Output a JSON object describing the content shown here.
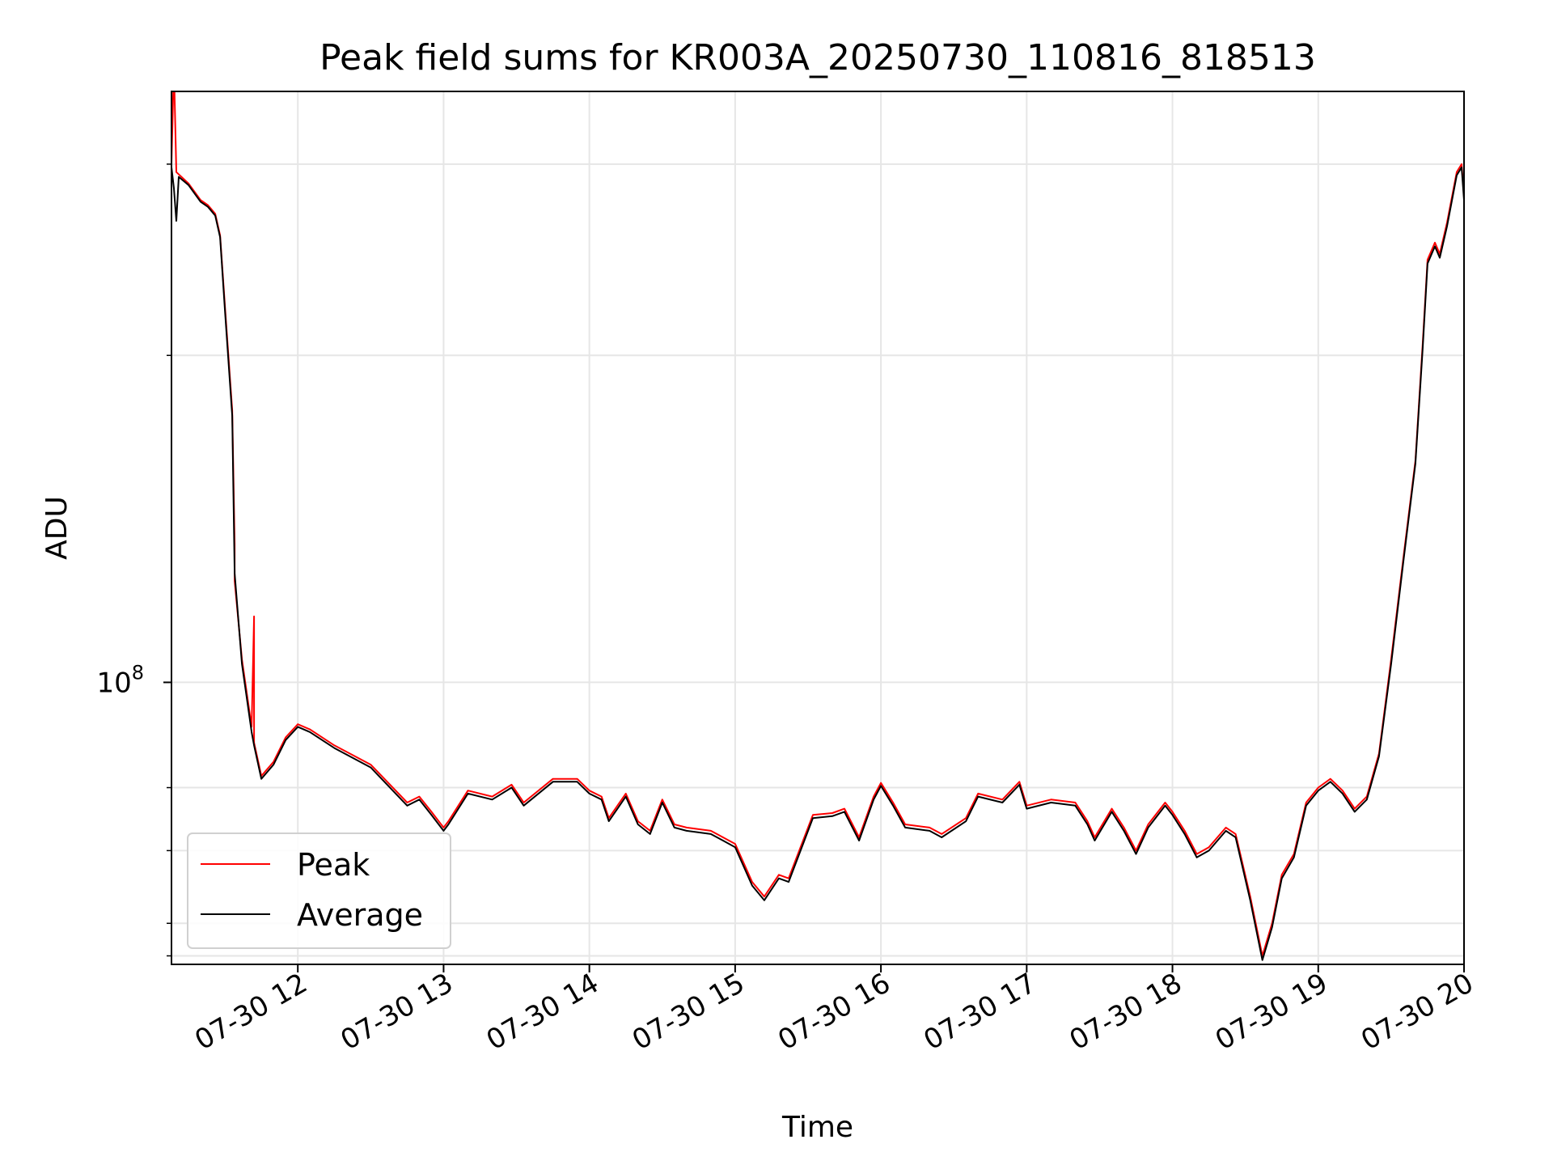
{
  "chart_data": {
    "type": "line",
    "title": "Peak field sums for KR003A_20250730_110816_818513",
    "xlabel": "Time",
    "ylabel": "ADU",
    "y_scale": "log",
    "ylim": [
      55000000,
      350000000
    ],
    "xlim": [
      "2025-07-30 11:08",
      "2025-07-30 20:00"
    ],
    "x_ticks": [
      {
        "value": "2025-07-30 12:00",
        "label": "07-30 12"
      },
      {
        "value": "2025-07-30 13:00",
        "label": "07-30 13"
      },
      {
        "value": "2025-07-30 14:00",
        "label": "07-30 14"
      },
      {
        "value": "2025-07-30 15:00",
        "label": "07-30 15"
      },
      {
        "value": "2025-07-30 16:00",
        "label": "07-30 16"
      },
      {
        "value": "2025-07-30 17:00",
        "label": "07-30 17"
      },
      {
        "value": "2025-07-30 18:00",
        "label": "07-30 18"
      },
      {
        "value": "2025-07-30 19:00",
        "label": "07-30 19"
      },
      {
        "value": "2025-07-30 20:00",
        "label": "07-30 20"
      }
    ],
    "y_major_ticks": [
      {
        "value": 100000000,
        "base": "10",
        "exp": "8"
      }
    ],
    "y_minor_ticks": [
      56000000,
      60000000,
      70000000,
      80000000,
      200000000,
      300000000
    ],
    "grid": true,
    "legend_position": "lower-left",
    "series": [
      {
        "name": "Peak",
        "color": "#ff0000",
        "points": [
          [
            "2025-07-30 11:08",
            300000000
          ],
          [
            "2025-07-30 11:09",
            370000000
          ],
          [
            "2025-07-30 11:10",
            295000000
          ],
          [
            "2025-07-30 11:15",
            288000000
          ],
          [
            "2025-07-30 11:20",
            278000000
          ],
          [
            "2025-07-30 11:23",
            275000000
          ],
          [
            "2025-07-30 11:26",
            270000000
          ],
          [
            "2025-07-30 11:28",
            258000000
          ],
          [
            "2025-07-30 11:30",
            222000000
          ],
          [
            "2025-07-30 11:33",
            178000000
          ],
          [
            "2025-07-30 11:34",
            134000000
          ],
          [
            "2025-07-30 11:34",
            124000000
          ],
          [
            "2025-07-30 11:37",
            105000000
          ],
          [
            "2025-07-30 11:41",
            91000000
          ],
          [
            "2025-07-30 11:42",
            115000000
          ],
          [
            "2025-07-30 11:42",
            88000000
          ],
          [
            "2025-07-30 11:45",
            82000000
          ],
          [
            "2025-07-30 11:50",
            84500000
          ],
          [
            "2025-07-30 11:55",
            89000000
          ],
          [
            "2025-07-30 12:00",
            91500000
          ],
          [
            "2025-07-30 12:05",
            90500000
          ],
          [
            "2025-07-30 12:15",
            87500000
          ],
          [
            "2025-07-30 12:30",
            84000000
          ],
          [
            "2025-07-30 12:45",
            77500000
          ],
          [
            "2025-07-30 12:50",
            78500000
          ],
          [
            "2025-07-30 12:55",
            76000000
          ],
          [
            "2025-07-30 13:00",
            73500000
          ],
          [
            "2025-07-30 13:02",
            74500000
          ],
          [
            "2025-07-30 13:10",
            79500000
          ],
          [
            "2025-07-30 13:20",
            78500000
          ],
          [
            "2025-07-30 13:28",
            80500000
          ],
          [
            "2025-07-30 13:33",
            77500000
          ],
          [
            "2025-07-30 13:45",
            81500000
          ],
          [
            "2025-07-30 13:55",
            81500000
          ],
          [
            "2025-07-30 14:00",
            79500000
          ],
          [
            "2025-07-30 14:05",
            78500000
          ],
          [
            "2025-07-30 14:08",
            75000000
          ],
          [
            "2025-07-30 14:15",
            79000000
          ],
          [
            "2025-07-30 14:20",
            74500000
          ],
          [
            "2025-07-30 14:25",
            73000000
          ],
          [
            "2025-07-30 14:30",
            78000000
          ],
          [
            "2025-07-30 14:35",
            74000000
          ],
          [
            "2025-07-30 14:40",
            73500000
          ],
          [
            "2025-07-30 14:50",
            73000000
          ],
          [
            "2025-07-30 14:55",
            72000000
          ],
          [
            "2025-07-30 15:00",
            71000000
          ],
          [
            "2025-07-30 15:07",
            65500000
          ],
          [
            "2025-07-30 15:12",
            63500000
          ],
          [
            "2025-07-30 15:18",
            66500000
          ],
          [
            "2025-07-30 15:22",
            66000000
          ],
          [
            "2025-07-30 15:32",
            75500000
          ],
          [
            "2025-07-30 15:40",
            75800000
          ],
          [
            "2025-07-30 15:45",
            76500000
          ],
          [
            "2025-07-30 15:51",
            72000000
          ],
          [
            "2025-07-30 15:57",
            78500000
          ],
          [
            "2025-07-30 16:00",
            80800000
          ],
          [
            "2025-07-30 16:05",
            77500000
          ],
          [
            "2025-07-30 16:10",
            74000000
          ],
          [
            "2025-07-30 16:20",
            73500000
          ],
          [
            "2025-07-30 16:25",
            72500000
          ],
          [
            "2025-07-30 16:35",
            75000000
          ],
          [
            "2025-07-30 16:40",
            79000000
          ],
          [
            "2025-07-30 16:50",
            78000000
          ],
          [
            "2025-07-30 16:57",
            81000000
          ],
          [
            "2025-07-30 17:00",
            77000000
          ],
          [
            "2025-07-30 17:10",
            78000000
          ],
          [
            "2025-07-30 17:20",
            77500000
          ],
          [
            "2025-07-30 17:25",
            74500000
          ],
          [
            "2025-07-30 17:28",
            72000000
          ],
          [
            "2025-07-30 17:35",
            76500000
          ],
          [
            "2025-07-30 17:40",
            73500000
          ],
          [
            "2025-07-30 17:45",
            70000000
          ],
          [
            "2025-07-30 17:50",
            74000000
          ],
          [
            "2025-07-30 17:57",
            77500000
          ],
          [
            "2025-07-30 18:00",
            76000000
          ],
          [
            "2025-07-30 18:05",
            73000000
          ],
          [
            "2025-07-30 18:10",
            69500000
          ],
          [
            "2025-07-30 18:15",
            70500000
          ],
          [
            "2025-07-30 18:22",
            73500000
          ],
          [
            "2025-07-30 18:26",
            72500000
          ],
          [
            "2025-07-30 18:32",
            63500000
          ],
          [
            "2025-07-30 18:37",
            56000000
          ],
          [
            "2025-07-30 18:41",
            60000000
          ],
          [
            "2025-07-30 18:45",
            66500000
          ],
          [
            "2025-07-30 18:50",
            69500000
          ],
          [
            "2025-07-30 18:55",
            77500000
          ],
          [
            "2025-07-30 19:00",
            80000000
          ],
          [
            "2025-07-30 19:05",
            81500000
          ],
          [
            "2025-07-30 19:10",
            79500000
          ],
          [
            "2025-07-30 19:15",
            76500000
          ],
          [
            "2025-07-30 19:20",
            78500000
          ],
          [
            "2025-07-30 19:25",
            86000000
          ],
          [
            "2025-07-30 19:30",
            105000000
          ],
          [
            "2025-07-30 19:35",
            130000000
          ],
          [
            "2025-07-30 19:40",
            160000000
          ],
          [
            "2025-07-30 19:43",
            205000000
          ],
          [
            "2025-07-30 19:45",
            245000000
          ],
          [
            "2025-07-30 19:48",
            254000000
          ],
          [
            "2025-07-30 19:50",
            248000000
          ],
          [
            "2025-07-30 19:53",
            265000000
          ],
          [
            "2025-07-30 19:57",
            295000000
          ],
          [
            "2025-07-30 19:59",
            300000000
          ],
          [
            "2025-07-30 20:00",
            280000000
          ]
        ]
      },
      {
        "name": "Average",
        "color": "#000000",
        "points": [
          [
            "2025-07-30 11:08",
            298000000
          ],
          [
            "2025-07-30 11:09",
            285000000
          ],
          [
            "2025-07-30 11:10",
            266000000
          ],
          [
            "2025-07-30 11:11",
            292000000
          ],
          [
            "2025-07-30 11:15",
            287000000
          ],
          [
            "2025-07-30 11:20",
            277000000
          ],
          [
            "2025-07-30 11:23",
            274000000
          ],
          [
            "2025-07-30 11:26",
            269000000
          ],
          [
            "2025-07-30 11:28",
            257000000
          ],
          [
            "2025-07-30 11:30",
            220000000
          ],
          [
            "2025-07-30 11:33",
            176000000
          ],
          [
            "2025-07-30 11:34",
            126000000
          ],
          [
            "2025-07-30 11:37",
            104000000
          ],
          [
            "2025-07-30 11:41",
            90000000
          ],
          [
            "2025-07-30 11:42",
            87500000
          ],
          [
            "2025-07-30 11:45",
            81500000
          ],
          [
            "2025-07-30 11:50",
            84000000
          ],
          [
            "2025-07-30 11:55",
            88500000
          ],
          [
            "2025-07-30 12:00",
            91000000
          ],
          [
            "2025-07-30 12:05",
            90000000
          ],
          [
            "2025-07-30 12:15",
            87000000
          ],
          [
            "2025-07-30 12:30",
            83500000
          ],
          [
            "2025-07-30 12:45",
            77000000
          ],
          [
            "2025-07-30 12:50",
            78000000
          ],
          [
            "2025-07-30 12:55",
            75500000
          ],
          [
            "2025-07-30 13:00",
            73000000
          ],
          [
            "2025-07-30 13:02",
            74000000
          ],
          [
            "2025-07-30 13:10",
            79000000
          ],
          [
            "2025-07-30 13:20",
            78000000
          ],
          [
            "2025-07-30 13:28",
            80000000
          ],
          [
            "2025-07-30 13:33",
            77000000
          ],
          [
            "2025-07-30 13:45",
            81000000
          ],
          [
            "2025-07-30 13:55",
            81000000
          ],
          [
            "2025-07-30 14:00",
            79000000
          ],
          [
            "2025-07-30 14:05",
            78000000
          ],
          [
            "2025-07-30 14:08",
            74500000
          ],
          [
            "2025-07-30 14:15",
            78500000
          ],
          [
            "2025-07-30 14:20",
            74000000
          ],
          [
            "2025-07-30 14:25",
            72500000
          ],
          [
            "2025-07-30 14:30",
            77500000
          ],
          [
            "2025-07-30 14:35",
            73500000
          ],
          [
            "2025-07-30 14:40",
            73000000
          ],
          [
            "2025-07-30 14:50",
            72500000
          ],
          [
            "2025-07-30 14:55",
            71500000
          ],
          [
            "2025-07-30 15:00",
            70500000
          ],
          [
            "2025-07-30 15:07",
            65000000
          ],
          [
            "2025-07-30 15:12",
            63000000
          ],
          [
            "2025-07-30 15:18",
            66000000
          ],
          [
            "2025-07-30 15:22",
            65500000
          ],
          [
            "2025-07-30 15:32",
            75000000
          ],
          [
            "2025-07-30 15:40",
            75300000
          ],
          [
            "2025-07-30 15:45",
            76000000
          ],
          [
            "2025-07-30 15:51",
            71500000
          ],
          [
            "2025-07-30 15:57",
            78000000
          ],
          [
            "2025-07-30 16:00",
            80300000
          ],
          [
            "2025-07-30 16:05",
            77000000
          ],
          [
            "2025-07-30 16:10",
            73500000
          ],
          [
            "2025-07-30 16:20",
            73000000
          ],
          [
            "2025-07-30 16:25",
            72000000
          ],
          [
            "2025-07-30 16:35",
            74500000
          ],
          [
            "2025-07-30 16:40",
            78500000
          ],
          [
            "2025-07-30 16:50",
            77500000
          ],
          [
            "2025-07-30 16:57",
            80500000
          ],
          [
            "2025-07-30 17:00",
            76500000
          ],
          [
            "2025-07-30 17:10",
            77500000
          ],
          [
            "2025-07-30 17:20",
            77000000
          ],
          [
            "2025-07-30 17:25",
            74000000
          ],
          [
            "2025-07-30 17:28",
            71500000
          ],
          [
            "2025-07-30 17:35",
            76000000
          ],
          [
            "2025-07-30 17:40",
            73000000
          ],
          [
            "2025-07-30 17:45",
            69500000
          ],
          [
            "2025-07-30 17:50",
            73500000
          ],
          [
            "2025-07-30 17:57",
            77000000
          ],
          [
            "2025-07-30 18:00",
            75500000
          ],
          [
            "2025-07-30 18:05",
            72500000
          ],
          [
            "2025-07-30 18:10",
            69000000
          ],
          [
            "2025-07-30 18:15",
            70000000
          ],
          [
            "2025-07-30 18:22",
            73000000
          ],
          [
            "2025-07-30 18:26",
            72000000
          ],
          [
            "2025-07-30 18:32",
            63000000
          ],
          [
            "2025-07-30 18:37",
            55500000
          ],
          [
            "2025-07-30 18:41",
            59500000
          ],
          [
            "2025-07-30 18:45",
            66000000
          ],
          [
            "2025-07-30 18:50",
            69000000
          ],
          [
            "2025-07-30 18:55",
            77000000
          ],
          [
            "2025-07-30 19:00",
            79500000
          ],
          [
            "2025-07-30 19:05",
            81000000
          ],
          [
            "2025-07-30 19:10",
            79000000
          ],
          [
            "2025-07-30 19:15",
            76000000
          ],
          [
            "2025-07-30 19:20",
            78000000
          ],
          [
            "2025-07-30 19:25",
            85500000
          ],
          [
            "2025-07-30 19:30",
            104000000
          ],
          [
            "2025-07-30 19:35",
            129000000
          ],
          [
            "2025-07-30 19:40",
            159000000
          ],
          [
            "2025-07-30 19:43",
            203000000
          ],
          [
            "2025-07-30 19:45",
            243000000
          ],
          [
            "2025-07-30 19:48",
            252000000
          ],
          [
            "2025-07-30 19:50",
            246000000
          ],
          [
            "2025-07-30 19:53",
            263000000
          ],
          [
            "2025-07-30 19:57",
            293000000
          ],
          [
            "2025-07-30 19:59",
            298000000
          ],
          [
            "2025-07-30 20:00",
            278000000
          ]
        ]
      }
    ]
  }
}
